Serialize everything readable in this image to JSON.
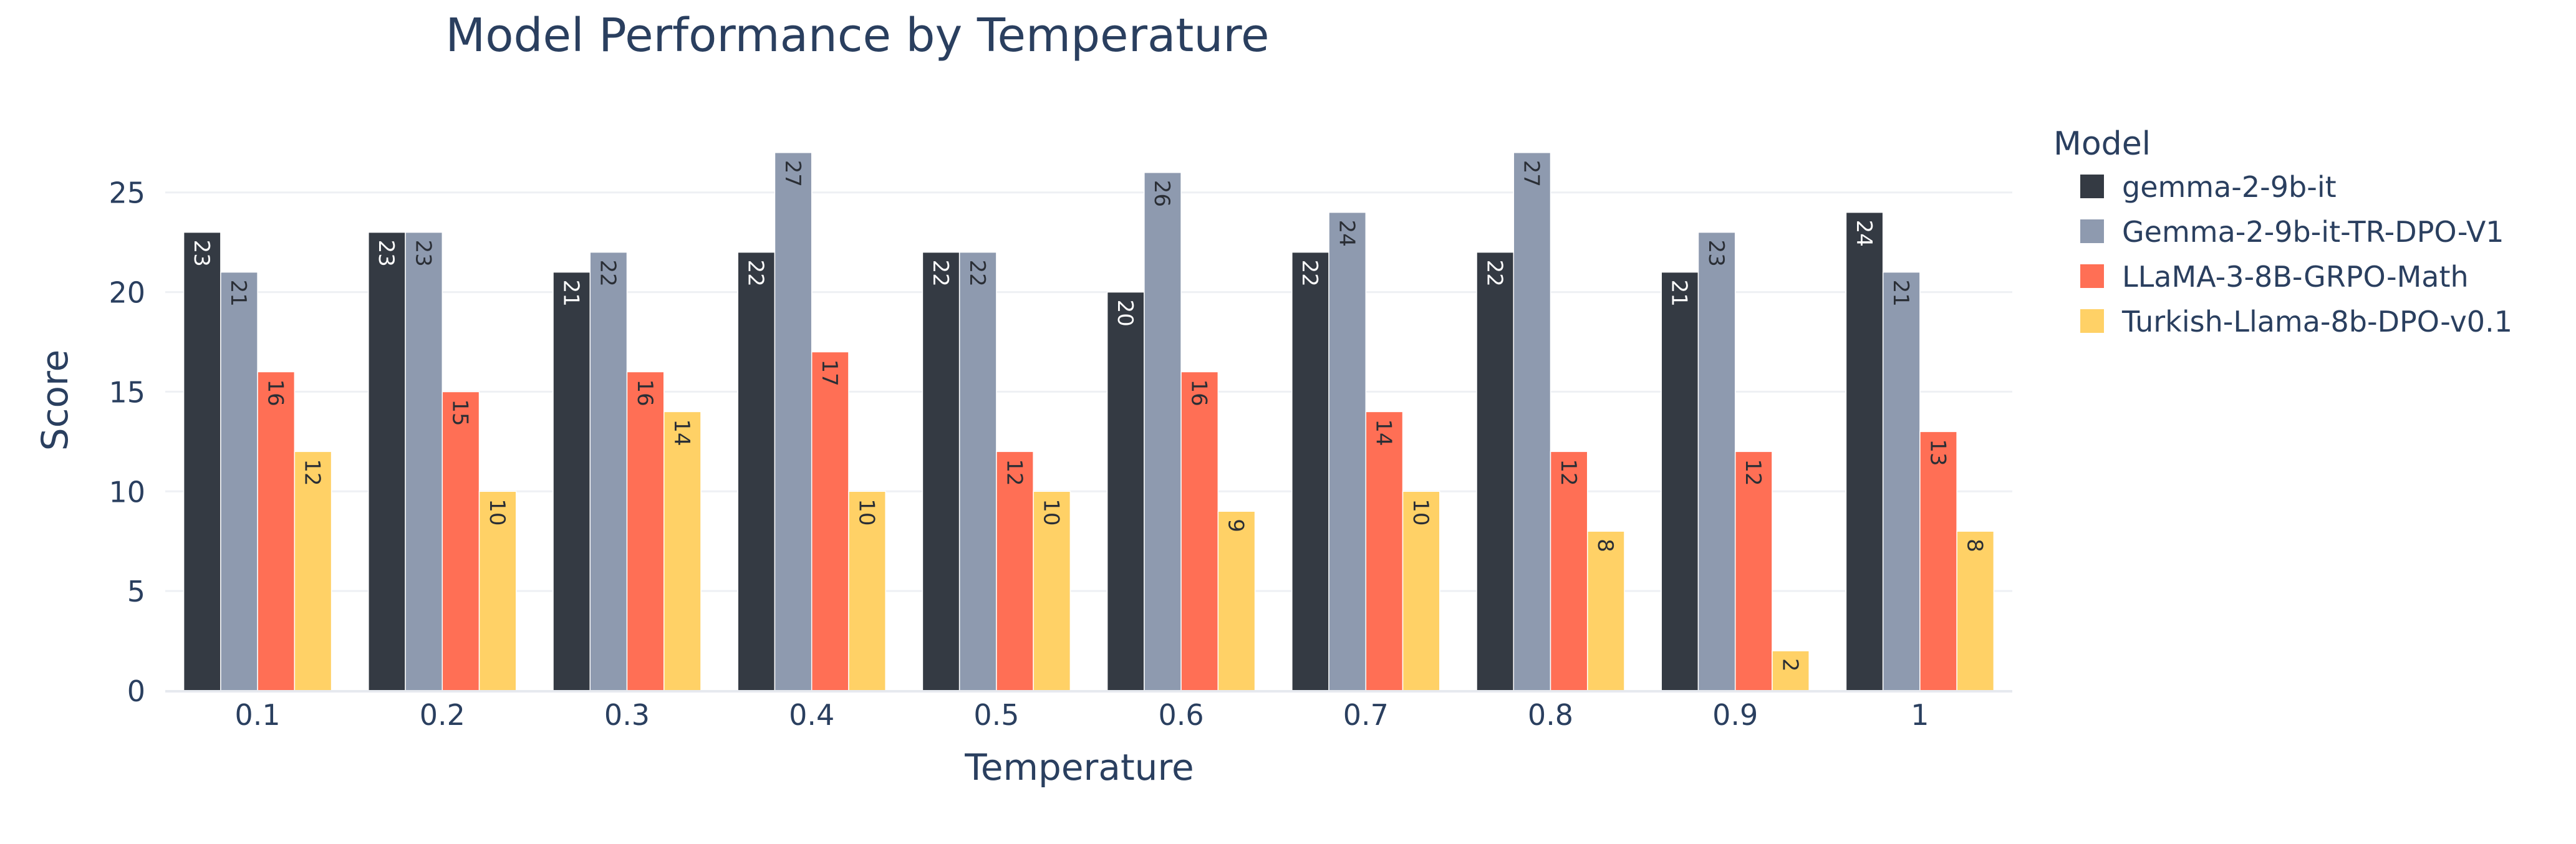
{
  "chart_data": {
    "type": "bar",
    "title": "Model Performance by Temperature",
    "xlabel": "Temperature",
    "ylabel": "Score",
    "categories": [
      "0.1",
      "0.2",
      "0.3",
      "0.4",
      "0.5",
      "0.6",
      "0.7",
      "0.8",
      "0.9",
      "1"
    ],
    "ylim": [
      0,
      28.4
    ],
    "yticks": [
      0,
      5,
      10,
      15,
      20,
      25
    ],
    "grid": true,
    "legend": {
      "title": "Model",
      "position": "right"
    },
    "series": [
      {
        "name": "gemma-2-9b-it",
        "color": "#343a43",
        "values": [
          23,
          23,
          21,
          22,
          22,
          20,
          22,
          22,
          21,
          24
        ]
      },
      {
        "name": "Gemma-2-9b-it-TR-DPO-V1",
        "color": "#8e9aaf",
        "values": [
          21,
          23,
          22,
          27,
          22,
          26,
          24,
          27,
          23,
          21
        ]
      },
      {
        "name": "LLaMA-3-8B-GRPO-Math",
        "color": "#ff6f55",
        "values": [
          16,
          15,
          16,
          17,
          12,
          16,
          14,
          12,
          12,
          13
        ]
      },
      {
        "name": "Turkish-Llama-8b-DPO-v0.1",
        "color": "#ffd166",
        "values": [
          12,
          10,
          14,
          10,
          10,
          9,
          10,
          8,
          2,
          8
        ]
      }
    ]
  }
}
